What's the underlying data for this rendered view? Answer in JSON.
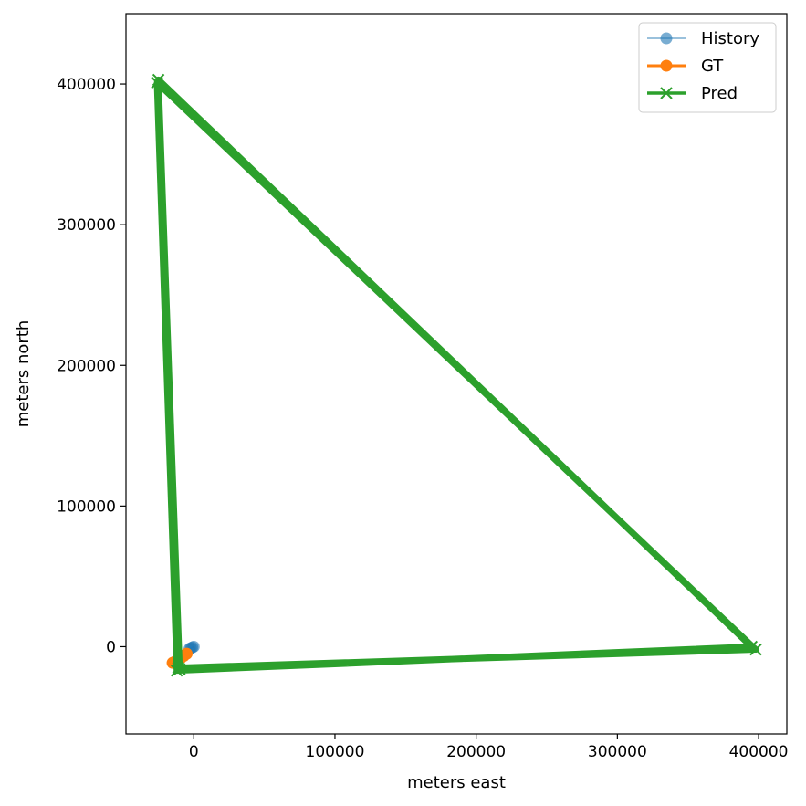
{
  "chart_data": {
    "type": "line",
    "title": "",
    "xlabel": "meters east",
    "ylabel": "meters north",
    "xlim": [
      -48000,
      420000
    ],
    "ylim": [
      -62000,
      450000
    ],
    "xticks": [
      0,
      100000,
      200000,
      300000,
      400000
    ],
    "yticks": [
      0,
      100000,
      200000,
      300000,
      400000
    ],
    "grid": false,
    "legend_position": "top-right",
    "series": [
      {
        "name": "History",
        "color": "#1f77b4",
        "marker": "o",
        "alpha": 0.6,
        "x": [
          -3000,
          -2000,
          -1000,
          0
        ],
        "y": [
          -1500,
          -1000,
          -500,
          0
        ]
      },
      {
        "name": "GT",
        "color": "#ff7f0e",
        "marker": "o",
        "x": [
          -5000,
          -7000,
          -9000,
          -11000,
          -13000,
          -15000
        ],
        "y": [
          -5000,
          -6500,
          -8000,
          -9500,
          -10500,
          -11500
        ]
      },
      {
        "name": "Pred",
        "color": "#2ca02c",
        "marker": "x",
        "x": [
          -10000,
          -25000,
          395000,
          -12000,
          -26000,
          398000,
          -11000
        ],
        "y": [
          -16000,
          403000,
          0,
          -17000,
          401000,
          -2000,
          -15000
        ]
      }
    ]
  }
}
